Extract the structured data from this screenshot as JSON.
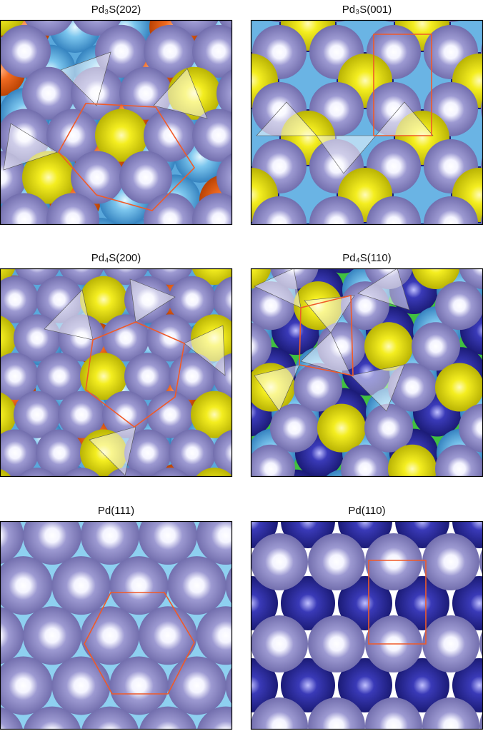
{
  "panels": [
    {
      "title": "Pd₃S(202)"
    },
    {
      "title": "Pd₃S(001)"
    },
    {
      "title": "Pd₄S(200)"
    },
    {
      "title": "Pd₄S(110)"
    },
    {
      "title": "Pd(111)"
    },
    {
      "title": "Pd(110)"
    }
  ]
}
